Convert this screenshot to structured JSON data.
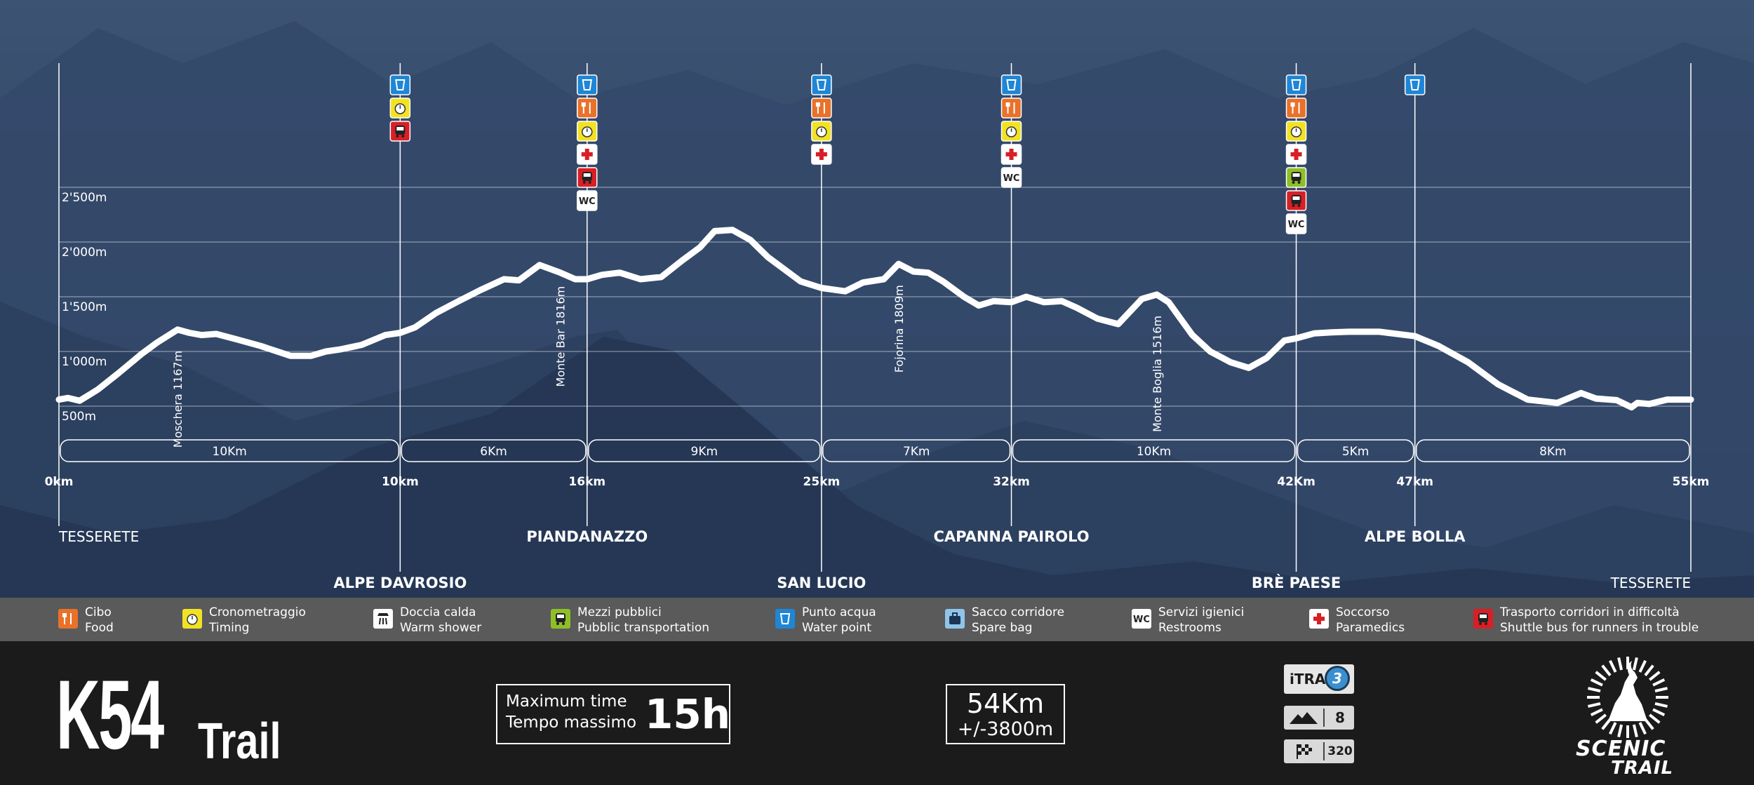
{
  "chart_data": {
    "type": "line",
    "title": "",
    "xlabel": "",
    "ylabel": "",
    "xlim": [
      0,
      55
    ],
    "ylim": [
      0,
      3000
    ],
    "grid": true,
    "y_ticks": [
      {
        "value": 500,
        "label": "500m"
      },
      {
        "value": 1000,
        "label": "1'000m"
      },
      {
        "value": 1500,
        "label": "1'500m"
      },
      {
        "value": 2000,
        "label": "2'000m"
      },
      {
        "value": 2500,
        "label": "2'500m"
      }
    ],
    "x_ticks": [
      {
        "value": 0,
        "label": "0km"
      },
      {
        "value": 11.5,
        "label": "10km"
      },
      {
        "value": 17.8,
        "label": "16km"
      },
      {
        "value": 25.7,
        "label": "25km"
      },
      {
        "value": 32.1,
        "label": "32km"
      },
      {
        "value": 41.7,
        "label": "42Km"
      },
      {
        "value": 45.7,
        "label": "47km"
      },
      {
        "value": 55,
        "label": "55km"
      }
    ],
    "segments": [
      {
        "from": 0,
        "to": 11.5,
        "label": "10Km"
      },
      {
        "from": 11.5,
        "to": 17.8,
        "label": "6Km"
      },
      {
        "from": 17.8,
        "to": 25.7,
        "label": "9Km"
      },
      {
        "from": 25.7,
        "to": 32.1,
        "label": "7Km"
      },
      {
        "from": 32.1,
        "to": 41.7,
        "label": "10Km"
      },
      {
        "from": 41.7,
        "to": 45.7,
        "label": "5Km"
      },
      {
        "from": 45.7,
        "to": 55,
        "label": "8Km"
      }
    ],
    "series": [
      {
        "color": "#ffffff",
        "x": [
          0,
          0.3,
          0.7,
          1.3,
          2.0,
          2.8,
          3.3,
          4.0,
          4.4,
          4.8,
          5.3,
          6.0,
          6.8,
          7.8,
          8.5,
          9.0,
          9.5,
          10.2,
          11.0,
          11.5,
          12.0,
          12.7,
          13.4,
          14.2,
          15.0,
          15.5,
          16.2,
          16.9,
          17.4,
          17.8,
          18.3,
          18.9,
          19.6,
          20.3,
          21.0,
          21.6,
          22.1,
          22.7,
          23.3,
          23.9,
          24.3,
          25.0,
          25.7,
          26.5,
          27.1,
          27.8,
          28.3,
          28.8,
          29.3,
          29.8,
          30.5,
          31.0,
          31.5,
          32.1,
          32.6,
          33.2,
          33.8,
          34.3,
          35.0,
          35.7,
          36.5,
          37.0,
          37.4,
          37.8,
          38.2,
          38.8,
          39.5,
          40.1,
          40.7,
          41.3,
          41.7,
          42.3,
          42.9,
          43.5,
          44.5,
          45.7,
          46.5,
          47.5,
          48.5,
          49.5,
          50.5,
          51.3,
          51.8,
          52.5,
          53.0,
          53.2,
          53.6,
          54.2,
          55.0
        ],
        "y": [
          560,
          575,
          550,
          650,
          800,
          980,
          1080,
          1200,
          1170,
          1150,
          1160,
          1110,
          1050,
          960,
          960,
          1000,
          1020,
          1060,
          1150,
          1170,
          1220,
          1350,
          1450,
          1560,
          1660,
          1650,
          1790,
          1720,
          1660,
          1660,
          1700,
          1720,
          1660,
          1680,
          1830,
          1950,
          2100,
          2110,
          2020,
          1860,
          1780,
          1640,
          1580,
          1550,
          1630,
          1660,
          1800,
          1730,
          1720,
          1640,
          1500,
          1420,
          1460,
          1450,
          1500,
          1450,
          1460,
          1400,
          1300,
          1250,
          1480,
          1520,
          1450,
          1300,
          1150,
          1000,
          900,
          850,
          940,
          1100,
          1120,
          1165,
          1175,
          1180,
          1180,
          1140,
          1050,
          900,
          700,
          560,
          530,
          620,
          570,
          555,
          490,
          530,
          520,
          560,
          560
        ]
      }
    ],
    "annotations": [
      {
        "x": 4.0,
        "y": 1200,
        "label": "Moschera 1167m"
      },
      {
        "x": 16.9,
        "y": 1790,
        "label": "Monte Bar 1816m"
      },
      {
        "x": 28.3,
        "y": 1800,
        "label": "Fojorina 1809m"
      },
      {
        "x": 37.0,
        "y": 1520,
        "label": "Monte Boglia 1516m"
      }
    ],
    "checkpoints": [
      {
        "x": 0,
        "name": "TESSERETE",
        "row": "upper",
        "bold": false,
        "services": []
      },
      {
        "x": 11.5,
        "name": "ALPE DAVROSIO",
        "row": "lower",
        "bold": true,
        "services": [
          "water",
          "timing",
          "shuttle"
        ]
      },
      {
        "x": 17.8,
        "name": "PIANDANAZZO",
        "row": "upper",
        "bold": true,
        "services": [
          "water",
          "food",
          "timing",
          "medic",
          "shuttle",
          "wc"
        ]
      },
      {
        "x": 25.7,
        "name": "SAN LUCIO",
        "row": "lower",
        "bold": true,
        "services": [
          "water",
          "food",
          "timing",
          "medic"
        ]
      },
      {
        "x": 32.1,
        "name": "CAPANNA PAIROLO",
        "row": "upper",
        "bold": true,
        "services": [
          "water",
          "food",
          "timing",
          "medic",
          "wc"
        ]
      },
      {
        "x": 41.7,
        "name": "BRÈ PAESE",
        "row": "lower",
        "bold": true,
        "services": [
          "water",
          "food",
          "timing",
          "medic",
          "bus",
          "shuttle",
          "wc"
        ]
      },
      {
        "x": 45.7,
        "name": "ALPE BOLLA",
        "row": "upper",
        "bold": true,
        "services": [
          "water"
        ]
      },
      {
        "x": 55,
        "name": "TESSERETE",
        "row": "lower",
        "bold": false,
        "services": []
      }
    ]
  },
  "service_styles": {
    "water": {
      "color": "#1f86d6",
      "icon": "water-glass-icon"
    },
    "food": {
      "color": "#e9712a",
      "icon": "fork-knife-icon"
    },
    "timing": {
      "color": "#f2e224",
      "icon": "stopwatch-icon"
    },
    "medic": {
      "color": "#ffffff",
      "icon": "red-cross-icon"
    },
    "shuttle": {
      "color": "#d91f26",
      "icon": "shuttle-bus-icon"
    },
    "bus": {
      "color": "#8fbf26",
      "icon": "bus-icon"
    },
    "wc": {
      "color": "#ffffff",
      "icon": "wc-icon",
      "text": "WC"
    }
  },
  "legend": [
    {
      "key": "food",
      "line1": "Cibo",
      "line2": "Food"
    },
    {
      "key": "timing",
      "line1": "Cronometraggio",
      "line2": "Timing"
    },
    {
      "key": "shower",
      "line1": "Doccia calda",
      "line2": "Warm shower",
      "color": "#ffffff",
      "icon": "shower-icon"
    },
    {
      "key": "bus",
      "line1": "Mezzi pubblici",
      "line2": "Pubblic transportation"
    },
    {
      "key": "water",
      "line1": "Punto acqua",
      "line2": "Water point"
    },
    {
      "key": "bag",
      "line1": "Sacco corridore",
      "line2": "Spare bag",
      "color": "#8fc5ea",
      "icon": "bag-icon"
    },
    {
      "key": "wc",
      "line1": "Servizi igienici",
      "line2": "Restrooms"
    },
    {
      "key": "medic",
      "line1": "Soccorso",
      "line2": "Paramedics"
    },
    {
      "key": "shuttle",
      "line1": "Trasporto corridori in difficoltà",
      "line2": "Shuttle bus for runners in trouble"
    }
  ],
  "footer": {
    "race_code": "K54",
    "race_type": "Trail",
    "max_time_label_1": "Maximum time",
    "max_time_label_2": "Tempo massimo",
    "max_time_value": "15h",
    "distance": "54Km",
    "elevation": "+/-3800m",
    "itra_label": "iTRA",
    "itra_points": "3",
    "mountain_level": "8",
    "finisher_points": "320",
    "logo_line1": "SCENIC",
    "logo_line2": "TRAIL"
  },
  "colors": {
    "sky_top": "#3b5170",
    "sky_bottom": "#22344f",
    "legend_bar": "#5a5a5a",
    "footer_bg": "#1b1b1b"
  }
}
